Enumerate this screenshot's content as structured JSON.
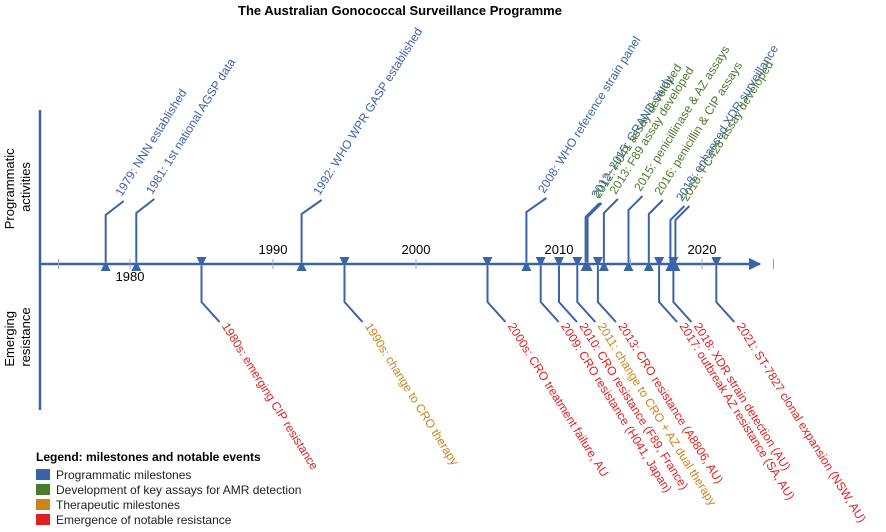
{
  "title": "The Australian Gonococcal Surveillance Programme",
  "axis_labels": {
    "top": [
      "Programmatic",
      "activities"
    ],
    "bottom": [
      "Emerging",
      "resistance"
    ]
  },
  "colors": {
    "programmatic": "#3b63a8",
    "assay": "#4a7a2a",
    "therapeutic": "#c8861c",
    "resistance": "#e02020",
    "axis": "#3b63a8"
  },
  "decade_labels": [
    "1980",
    "1990",
    "2000",
    "2010",
    "2020"
  ],
  "top_events": [
    {
      "year": 1979,
      "label": "1979: NNN established",
      "category": "programmatic"
    },
    {
      "year": 1981,
      "label": "1981: 1st national AGSP data",
      "category": "programmatic"
    },
    {
      "year": 1992,
      "label": "1992: WHO WPR GASP established",
      "category": "programmatic"
    },
    {
      "year": 2008,
      "label": "2008: WHO reference strain panel",
      "category": "programmatic"
    },
    {
      "year": 2012,
      "label": "2012–2015: GRAND study",
      "category": "programmatic"
    },
    {
      "year": 2012,
      "label": "2012: H041 assay developed",
      "category": "assay"
    },
    {
      "year": 2013,
      "label": "2013: F89 assay developed",
      "category": "assay"
    },
    {
      "year": 2015,
      "label": "2015: penicillinase & AZ assays",
      "category": "assay"
    },
    {
      "year": 2016,
      "label": "2016: penicillin & CIP assays",
      "category": "assay"
    },
    {
      "year": 2018,
      "label": "2018: enhanced XDR surveillance",
      "category": "programmatic"
    },
    {
      "year": 2018,
      "label": "2018: FC428 assay developed",
      "category": "assay"
    }
  ],
  "bottom_events": [
    {
      "year": 1985,
      "label": "1980s: emerging CIP resistance",
      "category": "resistance"
    },
    {
      "year": 1995,
      "label": "1990s: change to CRO therapy",
      "category": "therapeutic"
    },
    {
      "year": 2005,
      "label": "2000s: CRO treatment failure, AU",
      "category": "resistance"
    },
    {
      "year": 2009,
      "label": "2009: CRO resistance (H041, Japan)",
      "category": "resistance"
    },
    {
      "year": 2010,
      "label": "2010: CRO resistance (F89, France)",
      "category": "resistance"
    },
    {
      "year": 2011,
      "label": "2011: change to CRO + AZ dual therapy",
      "category": "therapeutic"
    },
    {
      "year": 2013,
      "label": "2013: CRO resistance (A8806, AU)",
      "category": "resistance"
    },
    {
      "year": 2017,
      "label": "2017: outbreak AZ resistance (SA, AU)",
      "category": "resistance"
    },
    {
      "year": 2018,
      "label": "2018: XDR strain detection (AU)",
      "category": "resistance"
    },
    {
      "year": 2021,
      "label": "2021: ST-7827 clonal expansion (NSW, AU)",
      "category": "resistance"
    }
  ],
  "legend": {
    "title": "Legend: milestones and notable events",
    "items": [
      {
        "label": "Programmatic milestones",
        "category": "programmatic"
      },
      {
        "label": "Development of key assays for AMR detection",
        "category": "assay"
      },
      {
        "label": "Therapeutic milestones",
        "category": "therapeutic"
      },
      {
        "label": "Emergence of notable resistance",
        "category": "resistance"
      }
    ]
  }
}
